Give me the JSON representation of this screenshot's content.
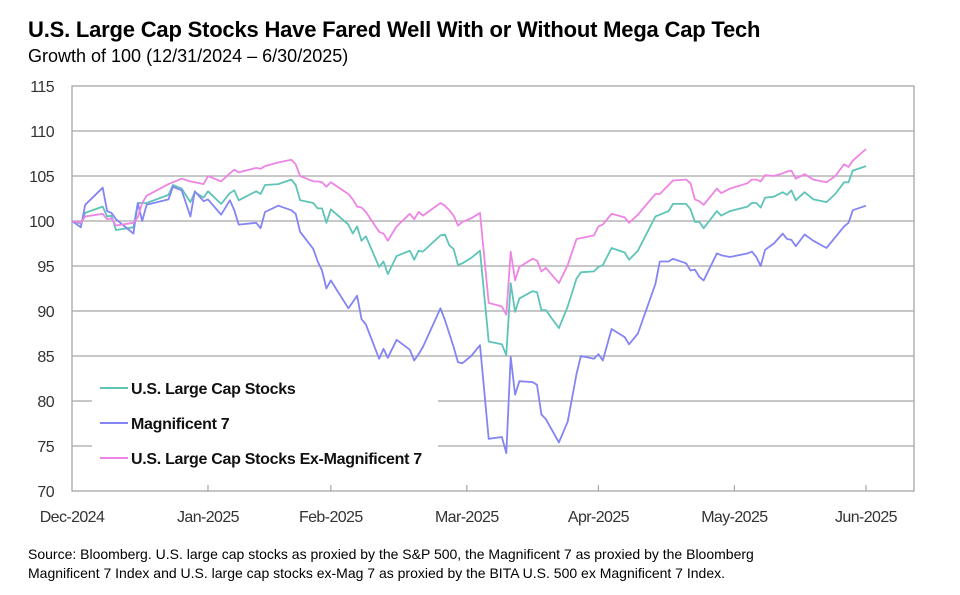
{
  "header": {
    "title": "U.S. Large Cap Stocks Have Fared Well With or Without Mega Cap Tech",
    "subtitle": "Growth of 100 (12/31/2024 – 6/30/2025)"
  },
  "footer": {
    "line1": "Source: Bloomberg. U.S. large cap stocks as proxied by the S&P 500, the Magnificent 7 as proxied by the Bloomberg",
    "line2": "Magnificent 7 Index and U.S. large cap stocks ex-Mag 7 as proxied by the BITA U.S. 500 ex Magnificent 7 Index."
  },
  "chart_data": {
    "type": "line",
    "title": "U.S. Large Cap Stocks Have Fared Well With or Without Mega Cap Tech",
    "subtitle": "Growth of 100 (12/31/2024 – 6/30/2025)",
    "xlabel": "",
    "ylabel": "",
    "ylim": [
      70,
      115
    ],
    "yticks": [
      70,
      75,
      80,
      85,
      90,
      95,
      100,
      105,
      110,
      115
    ],
    "xlim": [
      "2024-12-31",
      "2025-06-30"
    ],
    "xticks": [
      {
        "date": "2024-12-31",
        "label": "Dec-2024"
      },
      {
        "date": "2025-01-31",
        "label": "Jan-2025"
      },
      {
        "date": "2025-02-28",
        "label": "Feb-2025"
      },
      {
        "date": "2025-03-31",
        "label": "Mar-2025"
      },
      {
        "date": "2025-04-30",
        "label": "Apr-2025"
      },
      {
        "date": "2025-05-31",
        "label": "May-2025"
      },
      {
        "date": "2025-06-30",
        "label": "Jun-2025"
      }
    ],
    "grid": "horizontal",
    "legend_position": "bottom-left",
    "x": [
      "2024-12-31",
      "2025-01-02",
      "2025-01-03",
      "2025-01-07",
      "2025-01-08",
      "2025-01-09",
      "2025-01-10",
      "2025-01-14",
      "2025-01-15",
      "2025-01-16",
      "2025-01-17",
      "2025-01-22",
      "2025-01-23",
      "2025-01-25",
      "2025-01-27",
      "2025-01-28",
      "2025-01-30",
      "2025-01-31",
      "2025-02-03",
      "2025-02-05",
      "2025-02-06",
      "2025-02-07",
      "2025-02-11",
      "2025-02-12",
      "2025-02-13",
      "2025-02-16",
      "2025-02-19",
      "2025-02-20",
      "2025-02-21",
      "2025-02-24",
      "2025-02-25",
      "2025-02-26",
      "2025-02-27",
      "2025-02-28",
      "2025-03-04",
      "2025-03-05",
      "2025-03-06",
      "2025-03-07",
      "2025-03-08",
      "2025-03-11",
      "2025-03-12",
      "2025-03-13",
      "2025-03-15",
      "2025-03-18",
      "2025-03-19",
      "2025-03-20",
      "2025-03-21",
      "2025-03-25",
      "2025-03-26",
      "2025-03-27",
      "2025-03-28",
      "2025-03-29",
      "2025-03-30",
      "2025-04-01",
      "2025-04-03",
      "2025-04-05",
      "2025-04-08",
      "2025-04-09",
      "2025-04-10",
      "2025-04-11",
      "2025-04-12",
      "2025-04-15",
      "2025-04-16",
      "2025-04-17",
      "2025-04-18",
      "2025-04-21",
      "2025-04-23",
      "2025-04-25",
      "2025-04-26",
      "2025-04-29",
      "2025-04-30",
      "2025-05-01",
      "2025-05-03",
      "2025-05-06",
      "2025-05-07",
      "2025-05-09",
      "2025-05-13",
      "2025-05-14",
      "2025-05-16",
      "2025-05-17",
      "2025-05-20",
      "2025-05-21",
      "2025-05-22",
      "2025-05-23",
      "2025-05-24",
      "2025-05-27",
      "2025-05-28",
      "2025-05-30",
      "2025-06-03",
      "2025-06-04",
      "2025-06-05",
      "2025-06-06",
      "2025-06-07",
      "2025-06-09",
      "2025-06-11",
      "2025-06-12",
      "2025-06-13",
      "2025-06-14",
      "2025-06-16",
      "2025-06-18",
      "2025-06-21",
      "2025-06-23",
      "2025-06-25",
      "2025-06-26",
      "2025-06-27",
      "2025-06-30"
    ],
    "series": [
      {
        "name": "U.S. Large Cap Stocks",
        "color": "#5ec4b8",
        "values": [
          100.0,
          99.7,
          100.9,
          101.6,
          100.5,
          100.6,
          99.0,
          99.3,
          102.0,
          102.0,
          102.0,
          102.9,
          104.0,
          103.6,
          102.1,
          103.2,
          102.6,
          103.3,
          101.9,
          103.1,
          103.4,
          102.3,
          103.3,
          103.0,
          104.0,
          104.1,
          104.6,
          104.0,
          102.3,
          102.0,
          101.4,
          101.4,
          99.8,
          101.3,
          99.6,
          98.6,
          99.4,
          97.8,
          98.3,
          94.9,
          95.5,
          94.1,
          96.1,
          96.7,
          95.7,
          96.7,
          96.6,
          98.4,
          98.5,
          97.3,
          96.9,
          95.1,
          95.3,
          95.9,
          96.7,
          86.6,
          86.3,
          85.1,
          93.1,
          89.9,
          91.4,
          92.2,
          92.1,
          90.1,
          90.1,
          88.1,
          90.5,
          93.6,
          94.3,
          94.4,
          94.9,
          95.1,
          97.0,
          96.5,
          95.7,
          96.7,
          100.5,
          100.7,
          101.1,
          101.9,
          101.9,
          101.3,
          99.9,
          99.9,
          99.2,
          101.1,
          100.6,
          101.1,
          101.6,
          102.0,
          102.0,
          101.5,
          102.6,
          102.7,
          103.2,
          102.9,
          103.4,
          102.3,
          103.2,
          102.4,
          102.1,
          103.0,
          104.3,
          104.3,
          105.6,
          106.1
        ]
      },
      {
        "name": "Magnificent 7",
        "color": "#8484f4",
        "values": [
          100.0,
          99.3,
          101.8,
          103.7,
          101.1,
          100.9,
          100.2,
          98.6,
          102.0,
          100.0,
          101.8,
          102.4,
          103.8,
          103.4,
          100.5,
          103.3,
          102.2,
          102.4,
          100.7,
          102.3,
          101.2,
          99.6,
          99.8,
          99.2,
          101.0,
          101.7,
          101.2,
          100.8,
          98.8,
          96.9,
          95.5,
          94.5,
          92.5,
          93.4,
          90.3,
          91.0,
          91.7,
          89.1,
          88.5,
          84.7,
          85.8,
          84.8,
          86.8,
          85.7,
          84.5,
          85.2,
          86.0,
          90.3,
          89.0,
          87.5,
          86.0,
          84.3,
          84.2,
          85.0,
          86.2,
          75.8,
          76.0,
          74.2,
          84.9,
          80.7,
          82.2,
          82.1,
          81.8,
          78.5,
          78.0,
          75.4,
          77.7,
          83.0,
          85.0,
          84.7,
          85.2,
          84.5,
          88.0,
          87.1,
          86.3,
          87.5,
          93.0,
          95.5,
          95.5,
          95.8,
          95.3,
          94.5,
          94.6,
          93.8,
          93.4,
          96.4,
          96.2,
          96.0,
          96.4,
          96.6,
          96.0,
          95.0,
          96.8,
          97.5,
          98.6,
          98.0,
          97.9,
          97.2,
          98.5,
          97.8,
          97.0,
          98.2,
          99.4,
          99.8,
          101.2,
          101.7
        ]
      },
      {
        "name": "U.S. Large Cap Stocks Ex-Magnificent 7",
        "color": "#ee84e4",
        "values": [
          100.0,
          99.8,
          100.5,
          100.8,
          100.2,
          100.3,
          99.5,
          99.8,
          100.4,
          102.0,
          102.8,
          104.1,
          104.3,
          104.7,
          104.4,
          104.3,
          104.1,
          105.0,
          104.4,
          105.3,
          105.7,
          105.4,
          105.9,
          105.8,
          106.1,
          106.5,
          106.8,
          106.3,
          105.0,
          104.4,
          104.4,
          104.3,
          103.8,
          104.3,
          103.0,
          102.4,
          101.6,
          101.5,
          101.0,
          98.8,
          98.6,
          97.8,
          99.4,
          100.8,
          100.2,
          101.0,
          100.6,
          102.0,
          101.7,
          101.2,
          100.6,
          99.5,
          99.9,
          100.3,
          100.9,
          90.9,
          90.5,
          89.6,
          96.6,
          93.4,
          94.9,
          95.8,
          95.6,
          94.4,
          94.8,
          93.1,
          95.1,
          98.0,
          98.1,
          98.4,
          99.4,
          99.6,
          100.8,
          100.4,
          99.8,
          100.7,
          103.0,
          103.0,
          104.0,
          104.5,
          104.6,
          104.2,
          102.4,
          102.2,
          101.8,
          103.6,
          103.1,
          103.6,
          104.2,
          104.6,
          104.6,
          104.4,
          105.1,
          105.0,
          105.3,
          105.5,
          105.6,
          104.7,
          105.2,
          104.6,
          104.3,
          105.0,
          106.3,
          106.0,
          106.7,
          108.0
        ]
      }
    ],
    "frame_color": "#a6a6a6",
    "grid_color": "#a6a6a6"
  }
}
